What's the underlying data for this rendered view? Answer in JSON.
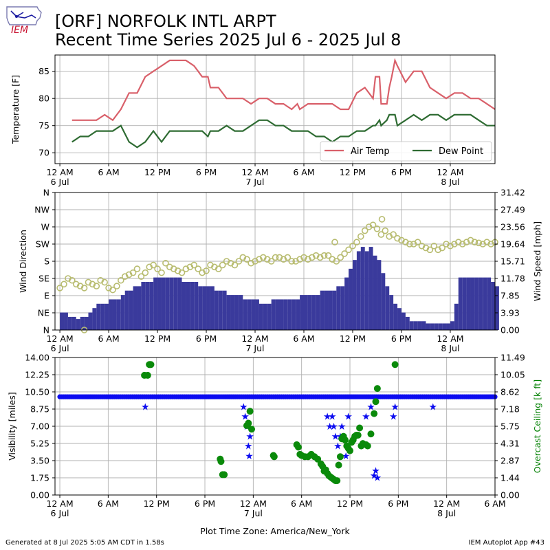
{
  "header": {
    "title_line1": "[ORF] NORFOLK INTL ARPT",
    "title_line2": "Recent Time Series 2025 Jul 6 - 2025 Jul 8",
    "logo_text": "IEM"
  },
  "footer": {
    "generated": "Generated at 8 Jul 2025 5:05 AM CDT in 1.58s",
    "app": "IEM Autoplot App #43"
  },
  "colors": {
    "air_temp": "#d9606a",
    "dew_point": "#2e6b32",
    "wind_dir": "#b8bc70",
    "wind_speed": "#3a3a9c",
    "visibility": "#0b0bf0",
    "ceiling": "#0a8a0a",
    "ceiling_label": "#008000",
    "grid": "#b0b0b0"
  },
  "chart_data": [
    {
      "type": "line",
      "panel": "temperature",
      "ylabel": "Temperature [F]",
      "x_unit": "hours since 12 AM 6 Jul",
      "xlim": [
        -0.6,
        53.5
      ],
      "ylim": [
        68,
        88
      ],
      "yticks": [
        70,
        75,
        80,
        85
      ],
      "xticks": [
        {
          "x": 0,
          "l1": "12 AM",
          "l2": "6 Jul"
        },
        {
          "x": 6,
          "l1": "6 AM",
          "l2": ""
        },
        {
          "x": 12,
          "l1": "12 PM",
          "l2": ""
        },
        {
          "x": 18,
          "l1": "6 PM",
          "l2": ""
        },
        {
          "x": 24,
          "l1": "12 AM",
          "l2": "7 Jul"
        },
        {
          "x": 30,
          "l1": "6 AM",
          "l2": ""
        },
        {
          "x": 36,
          "l1": "12 PM",
          "l2": ""
        },
        {
          "x": 42,
          "l1": "6 PM",
          "l2": ""
        },
        {
          "x": 48,
          "l1": "12 AM",
          "l2": "8 Jul"
        }
      ],
      "grid": true,
      "legend_position": "lower-right",
      "series": [
        {
          "name": "Air Temp",
          "color": "#d9606a",
          "x": [
            1.5,
            2.5,
            3.5,
            4.5,
            5.5,
            6.5,
            7.5,
            8.5,
            9.5,
            10.5,
            11.5,
            12.5,
            13.5,
            14.5,
            15.5,
            16.5,
            17.5,
            18.2,
            18.5,
            19.5,
            20.5,
            21.5,
            22.5,
            23.5,
            24.5,
            25.5,
            26.5,
            27.5,
            28.5,
            29.2,
            29.5,
            30.5,
            31.5,
            32.5,
            33.5,
            34.5,
            35.5,
            36.5,
            37.5,
            38.5,
            38.8,
            39.3,
            39.5,
            40.2,
            40.5,
            40.8,
            41.2,
            41.5,
            42.5,
            43.5,
            44.5,
            45.5,
            46.5,
            47.5,
            48.5,
            49.5,
            50.5,
            51.5,
            52.5,
            53.5
          ],
          "values": [
            76,
            76,
            76,
            76,
            77,
            76,
            78,
            81,
            81,
            84,
            85,
            86,
            87,
            87,
            87,
            86,
            84,
            84,
            82,
            82,
            80,
            80,
            80,
            79,
            80,
            80,
            79,
            79,
            78,
            79,
            78,
            79,
            79,
            79,
            79,
            78,
            78,
            81,
            82,
            80,
            84,
            84,
            79,
            79,
            82,
            84,
            87,
            86,
            83,
            85,
            85,
            82,
            81,
            80,
            81,
            81,
            80,
            80,
            79,
            78
          ]
        },
        {
          "name": "Dew Point",
          "color": "#2e6b32",
          "x": [
            1.5,
            2.5,
            3.5,
            4.5,
            5.5,
            6.5,
            7.5,
            8.5,
            9.5,
            10.5,
            11.5,
            12.5,
            13.5,
            14.5,
            15.5,
            16.5,
            17.5,
            18.2,
            18.5,
            19.5,
            20.5,
            21.5,
            22.5,
            23.5,
            24.5,
            25.5,
            26.5,
            27.5,
            28.5,
            29.2,
            29.5,
            30.5,
            31.5,
            32.5,
            33.5,
            34.5,
            35.5,
            36.5,
            37.5,
            38.5,
            38.8,
            39.3,
            39.5,
            40.2,
            40.5,
            40.8,
            41.2,
            41.5,
            42.5,
            43.5,
            44.5,
            45.5,
            46.5,
            47.5,
            48.5,
            49.5,
            50.5,
            51.5,
            52.5,
            53.5
          ],
          "values": [
            72,
            73,
            73,
            74,
            74,
            74,
            75,
            72,
            71,
            72,
            74,
            72,
            74,
            74,
            74,
            74,
            74,
            73,
            74,
            74,
            75,
            74,
            74,
            75,
            76,
            76,
            75,
            75,
            74,
            74,
            74,
            74,
            73,
            73,
            72,
            73,
            73,
            74,
            74,
            75,
            75,
            76,
            75,
            76,
            77,
            77,
            77,
            75,
            76,
            77,
            76,
            77,
            77,
            76,
            77,
            77,
            77,
            76,
            75,
            75
          ]
        }
      ]
    },
    {
      "type": "scatter",
      "panel": "wind",
      "ylabel": "Wind Direction",
      "ylabel_right": "Wind Speed [mph]",
      "ylim": [
        0,
        360
      ],
      "yticks_left": [
        "N",
        "NE",
        "E",
        "SE",
        "S",
        "SW",
        "W",
        "NW",
        "N"
      ],
      "yticks_right": [
        "0.00",
        "3.93",
        "7.85",
        "11.78",
        "15.71",
        "19.64",
        "23.56",
        "27.49",
        "31.42"
      ],
      "y2lim": [
        0,
        31.42
      ],
      "grid": true,
      "series": [
        {
          "name": "Wind Direction",
          "color": "#b8bc70",
          "x": [
            0,
            0.5,
            1,
            1.5,
            2,
            2.5,
            3,
            3.5,
            4,
            4.5,
            5,
            5.5,
            6,
            6.5,
            7,
            7.5,
            8,
            8.5,
            9,
            9.5,
            10,
            10.5,
            11,
            11.5,
            12,
            12.5,
            13,
            13.5,
            14,
            14.5,
            15,
            15.5,
            16,
            16.5,
            17,
            17.5,
            18,
            18.5,
            19,
            19.5,
            20,
            20.5,
            21,
            21.5,
            22,
            22.5,
            23,
            23.5,
            24,
            24.5,
            25,
            25.5,
            26,
            26.5,
            27,
            27.5,
            28,
            28.5,
            29,
            29.5,
            30,
            30.5,
            31,
            31.5,
            32,
            32.5,
            33,
            33.5,
            34,
            34.5,
            35,
            35.5,
            36,
            36.5,
            37,
            37.5,
            38,
            38.5,
            39,
            39.5,
            40,
            40.5,
            41,
            41.5,
            42,
            42.5,
            43,
            43.5,
            44,
            44.5,
            45,
            45.5,
            46,
            46.5,
            47,
            47.5,
            48,
            48.5,
            49,
            49.5,
            50,
            50.5,
            51,
            51.5,
            52,
            52.5,
            53,
            53.5,
            3.0,
            33.8,
            39.6
          ],
          "values": [
            110,
            120,
            135,
            130,
            120,
            115,
            110,
            125,
            120,
            115,
            130,
            125,
            110,
            105,
            115,
            130,
            140,
            145,
            150,
            160,
            140,
            150,
            165,
            170,
            160,
            150,
            175,
            165,
            160,
            155,
            150,
            160,
            165,
            170,
            160,
            150,
            155,
            170,
            165,
            160,
            170,
            180,
            175,
            170,
            180,
            190,
            185,
            175,
            180,
            185,
            190,
            185,
            180,
            190,
            190,
            185,
            190,
            180,
            180,
            185,
            190,
            185,
            190,
            195,
            190,
            195,
            195,
            185,
            180,
            190,
            200,
            210,
            220,
            230,
            245,
            260,
            270,
            275,
            265,
            250,
            260,
            245,
            250,
            240,
            235,
            230,
            225,
            225,
            230,
            220,
            215,
            210,
            220,
            210,
            215,
            225,
            220,
            225,
            230,
            225,
            230,
            235,
            230,
            228,
            225,
            230,
            225,
            230,
            0,
            230,
            290
          ]
        },
        {
          "name": "Wind Speed",
          "color": "#3a3a9c",
          "x": [
            0,
            0.5,
            1,
            1.5,
            2,
            2.5,
            3,
            3.5,
            4,
            4.5,
            5,
            5.5,
            6,
            6.5,
            7,
            7.5,
            8,
            8.5,
            9,
            9.5,
            10,
            10.5,
            11,
            11.5,
            12,
            12.5,
            13,
            13.5,
            14,
            14.5,
            15,
            15.5,
            16,
            16.5,
            17,
            17.5,
            18,
            18.5,
            19,
            19.5,
            20,
            20.5,
            21,
            21.5,
            22,
            22.5,
            23,
            23.5,
            24,
            24.5,
            25,
            25.5,
            26,
            26.5,
            27,
            27.5,
            28,
            28.5,
            29,
            29.5,
            30,
            30.5,
            31,
            31.5,
            32,
            32.5,
            33,
            33.5,
            34,
            34.5,
            35,
            35.5,
            36,
            36.5,
            37,
            37.5,
            38,
            38.5,
            39,
            39.5,
            40,
            40.5,
            41,
            41.5,
            42,
            42.5,
            43,
            43.5,
            44,
            44.5,
            45,
            45.5,
            46,
            46.5,
            47,
            47.5,
            48,
            48.5,
            49,
            49.5,
            50,
            50.5,
            51,
            51.5,
            52,
            52.5,
            53,
            53.5
          ],
          "values": [
            4,
            4,
            3,
            3,
            2.5,
            3,
            3,
            4,
            5,
            6,
            6,
            6,
            7,
            7,
            7,
            8,
            9,
            9,
            10,
            10,
            11,
            11,
            11,
            12,
            12,
            12,
            12,
            12,
            12,
            12,
            11,
            11,
            11,
            11,
            10,
            10,
            10,
            10,
            9,
            9,
            9,
            8,
            8,
            8,
            8,
            7,
            7,
            7,
            7,
            6,
            6,
            6,
            7,
            7,
            7,
            7,
            7,
            7,
            7,
            8,
            8,
            8,
            8,
            8,
            9,
            9,
            9,
            9,
            10,
            10,
            12,
            14,
            16,
            18,
            19,
            18,
            19,
            17,
            16,
            13,
            10,
            8,
            6,
            5,
            4,
            3,
            2,
            2,
            2,
            2,
            1.5,
            1.5,
            1.5,
            1.5,
            1.5,
            1.5,
            2,
            6,
            12,
            12,
            12,
            12,
            12,
            12,
            12,
            12,
            11,
            10
          ]
        }
      ]
    },
    {
      "type": "scatter",
      "panel": "visibility_ceiling",
      "ylabel": "Visibility [miles]",
      "ylabel_right": "Overcast Ceiling [k ft]",
      "ylim": [
        0,
        14
      ],
      "yticks_left": [
        "0.00",
        "1.75",
        "3.50",
        "5.25",
        "7.00",
        "8.75",
        "10.50",
        "12.25",
        "14.00"
      ],
      "yticks_right": [
        "0.00",
        "1.44",
        "2.87",
        "4.31",
        "5.75",
        "7.18",
        "8.62",
        "10.05",
        "11.49"
      ],
      "y2lim": [
        0,
        11.49
      ],
      "xticks": [
        {
          "x": 0,
          "l1": "12 AM",
          "l2": "6 Jul"
        },
        {
          "x": 6,
          "l1": "6 AM",
          "l2": ""
        },
        {
          "x": 12,
          "l1": "12 PM",
          "l2": ""
        },
        {
          "x": 18,
          "l1": "6 PM",
          "l2": ""
        },
        {
          "x": 24,
          "l1": "12 AM",
          "l2": "7 Jul"
        },
        {
          "x": 30,
          "l1": "6 AM",
          "l2": ""
        },
        {
          "x": 36,
          "l1": "12 PM",
          "l2": ""
        },
        {
          "x": 42,
          "l1": "6 PM",
          "l2": ""
        },
        {
          "x": 48,
          "l1": "12 AM",
          "l2": "8 Jul"
        },
        {
          "x": 54,
          "l1": "6 AM",
          "l2": ""
        }
      ],
      "xlabel": "Plot Time Zone: America/New_York",
      "grid": true,
      "visibility_baseline": 10,
      "series": [
        {
          "name": "Visibility",
          "color": "#0b0bf0",
          "x": [
            10.6,
            22.8,
            23.0,
            23.2,
            23.4,
            23.5,
            23.6,
            33.2,
            33.5,
            33.8,
            34.0,
            34.2,
            34.5,
            34.8,
            35.0,
            35.2,
            35.5,
            35.8,
            38.0,
            38.6,
            39.0,
            39.2,
            39.4,
            41.4,
            41.6,
            46.3
          ],
          "values": [
            9,
            9,
            8,
            7,
            5,
            4,
            6,
            8,
            7,
            8,
            7,
            6,
            5,
            6,
            7,
            6,
            4,
            8,
            8,
            9,
            2,
            2.5,
            1.8,
            8,
            9,
            9
          ]
        },
        {
          "name": "Overcast Ceiling",
          "color": "#0a8a0a",
          "x": [
            10.5,
            10.9,
            11.1,
            11.2,
            11.3,
            19.9,
            20.0,
            20.2,
            20.4,
            23.2,
            23.4,
            23.6,
            23.8,
            26.5,
            26.6,
            29.4,
            29.6,
            29.8,
            30.0,
            30.4,
            30.8,
            31.2,
            31.6,
            32.0,
            32.4,
            32.6,
            32.8,
            33.0,
            33.2,
            33.4,
            33.6,
            33.8,
            34.0,
            34.2,
            34.4,
            34.6,
            34.8,
            35.0,
            35.2,
            35.4,
            35.6,
            35.8,
            36.0,
            36.2,
            36.4,
            36.6,
            36.8,
            37.0,
            37.2,
            37.4,
            37.6,
            38.0,
            38.2,
            38.6,
            39.0,
            39.2,
            39.4,
            41.6
          ],
          "values": [
            10,
            10,
            10.9,
            10.9,
            10.9,
            3,
            2.8,
            1.7,
            1.7,
            5.8,
            6,
            7,
            5.5,
            3.3,
            3.2,
            4.2,
            4,
            3.4,
            3.3,
            3.2,
            3.2,
            3.4,
            3.2,
            3,
            2.6,
            2.4,
            2,
            2.1,
            1.8,
            1.6,
            1.5,
            1.4,
            1.3,
            1.2,
            1.2,
            2.5,
            3.2,
            4.7,
            4.9,
            4.6,
            4.1,
            3.9,
            3.7,
            4.4,
            4.6,
            4.9,
            5,
            5,
            5.6,
            4.1,
            4.3,
            4.2,
            4.1,
            5.1,
            6.8,
            7.8,
            8.9,
            10.9
          ]
        }
      ]
    }
  ],
  "legend": [
    {
      "label": "Air Temp",
      "color": "#d9606a"
    },
    {
      "label": "Dew Point",
      "color": "#2e6b32"
    }
  ]
}
